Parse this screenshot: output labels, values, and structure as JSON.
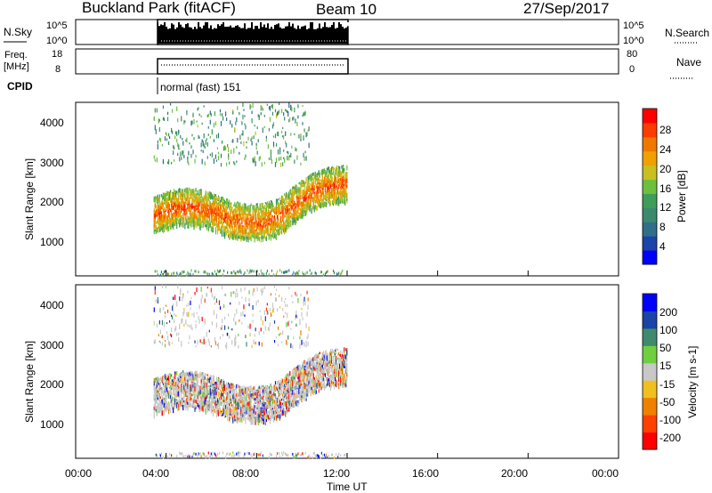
{
  "header": {
    "station": "Buckland Park (fitACF)",
    "beam": "Beam 10",
    "date": "27/Sep/2017"
  },
  "nsky_panel": {
    "left_label": "N.Sky",
    "left_ticks": [
      "10^5",
      "10^0"
    ],
    "right_ticks": [
      "10^5",
      "10^0"
    ],
    "right_label": "N.Search"
  },
  "freq_panel": {
    "left_label_line1": "Freq.",
    "left_label_line2": "[MHz]",
    "left_ticks": [
      "18",
      "8"
    ],
    "right_ticks": [
      "80",
      "0"
    ],
    "right_label": "Nave"
  },
  "cpid": {
    "label": "CPID",
    "mode": "normal (fast) 151"
  },
  "chart_data": [
    {
      "type": "heatmap",
      "ylabel": "Slant Range [km]",
      "y_ticks": [
        "4000",
        "3000",
        "2000",
        "1000"
      ],
      "ylim": [
        200,
        4500
      ],
      "colorbar": {
        "label": "Power [dB]",
        "ticks": [
          "28",
          "24",
          "20",
          "16",
          "12",
          "8",
          "4"
        ],
        "range": [
          0,
          32
        ],
        "colors": [
          "#0000ff",
          "#1a44a8",
          "#2f6f8a",
          "#3b8a6e",
          "#3f9d5a",
          "#6fbf3f",
          "#c8c020",
          "#f0a000",
          "#f07800",
          "#ff3c00",
          "#ff0000"
        ]
      }
    },
    {
      "type": "heatmap",
      "ylabel": "Slant Range [km]",
      "y_ticks": [
        "4000",
        "3000",
        "2000",
        "1000"
      ],
      "ylim": [
        200,
        4500
      ],
      "colorbar": {
        "label": "Velocity [m s-1]",
        "ticks": [
          "200",
          "100",
          "50",
          "15",
          "-15",
          "-50",
          "-100",
          "-200"
        ],
        "colors": [
          "#0000ff",
          "#1a44a8",
          "#3f8a6e",
          "#6fcf3f",
          "#c8c8c8",
          "#f0c020",
          "#f08000",
          "#ff4000",
          "#ff0000"
        ]
      }
    }
  ],
  "time_axis": {
    "ticks": [
      "00:00",
      "04:00",
      "08:00",
      "12:00",
      "16:00",
      "20:00",
      "00:00"
    ],
    "xlabel": "Time UT",
    "data_start_hour": 3.45,
    "data_end_hour": 12.0
  }
}
